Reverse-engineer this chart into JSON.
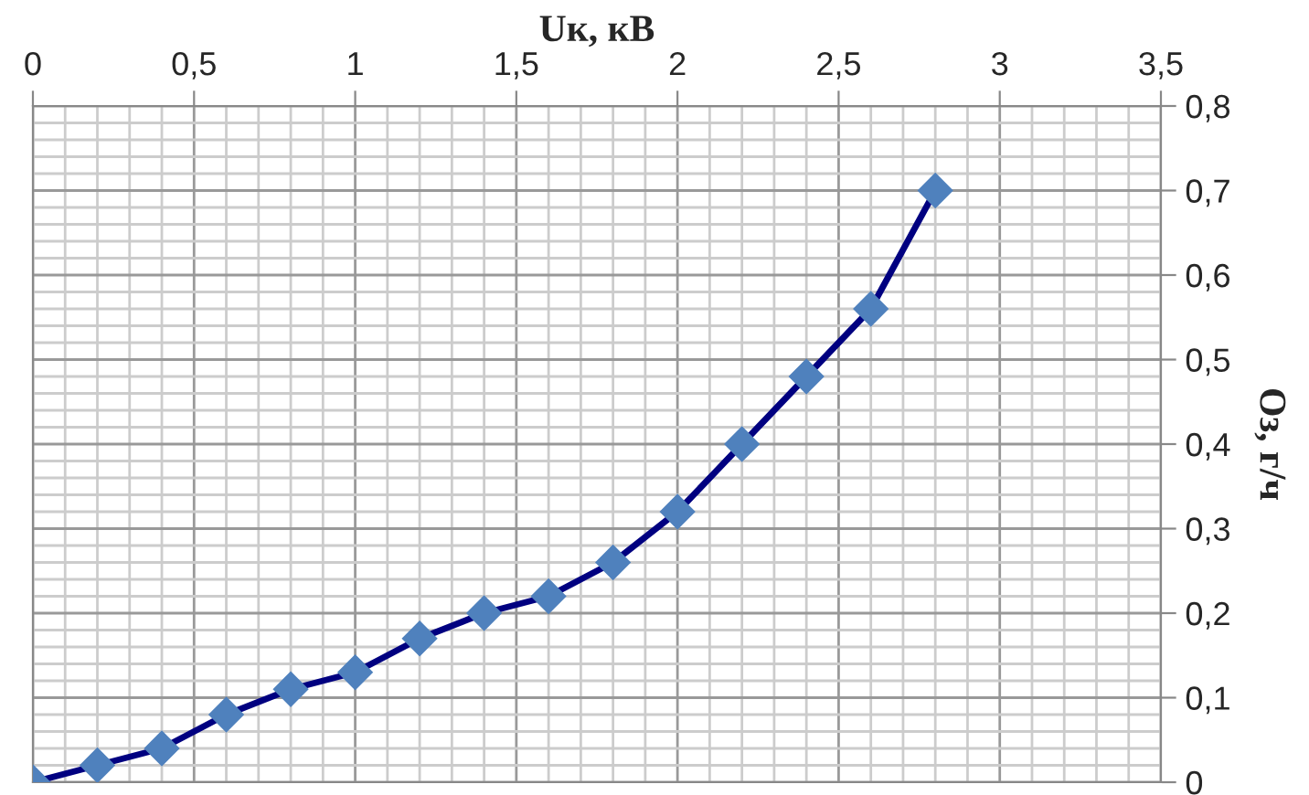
{
  "chart_data": {
    "type": "line",
    "xlabel": "Uк, кВ",
    "ylabel": "Оз, г/ч",
    "x": [
      0,
      0.2,
      0.4,
      0.6,
      0.8,
      1.0,
      1.2,
      1.4,
      1.6,
      1.8,
      2.0,
      2.2,
      2.4,
      2.6,
      2.8
    ],
    "series": [
      {
        "color": "#000080",
        "values": [
          0,
          0.02,
          0.04,
          0.08,
          0.11,
          0.13,
          0.17,
          0.2,
          0.22,
          0.26,
          0.32,
          0.4,
          0.48,
          0.56,
          0.7
        ]
      }
    ],
    "marker": "diamond",
    "line_style": "solid",
    "grid": true,
    "xlim": [
      0,
      3.5
    ],
    "xticks": [
      0,
      {
        "value": 0.5,
        "label": "0,5"
      },
      1,
      {
        "value": 1.5,
        "label": "1,5"
      },
      2,
      {
        "value": 2.5,
        "label": "2,5"
      },
      3,
      {
        "value": 3.5,
        "label": "3,5"
      }
    ],
    "ylim": [
      0,
      0.8
    ],
    "yticks": [
      0,
      {
        "value": 0.1,
        "label": "0,1"
      },
      {
        "value": 0.2,
        "label": "0,2"
      },
      {
        "value": 0.3,
        "label": "0,3"
      },
      {
        "value": 0.4,
        "label": "0,4"
      },
      {
        "value": 0.5,
        "label": "0,5"
      },
      {
        "value": 0.6,
        "label": "0,6"
      },
      {
        "value": 0.7,
        "label": "0,7"
      },
      {
        "value": 0.8,
        "label": "0,8"
      }
    ]
  }
}
